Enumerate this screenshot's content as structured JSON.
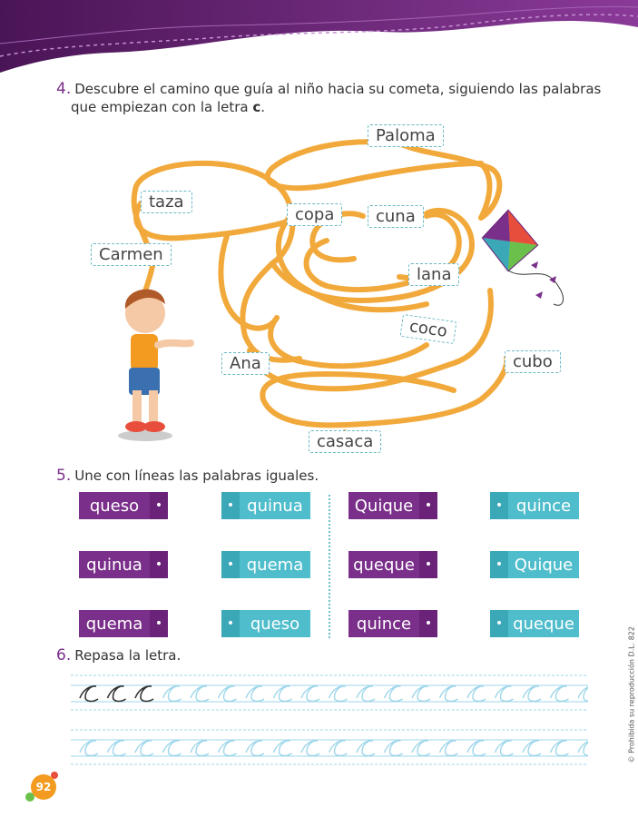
{
  "ex4": {
    "number": "4.",
    "line1": "Descubre el camino que guía al niño hacia su cometa, siguiendo las palabras",
    "line2_a": "que empiezan con la letra ",
    "line2_b": "c",
    "line2_c": ".",
    "words": [
      "Paloma",
      "taza",
      "copa",
      "cuna",
      "Carmen",
      "lana",
      "coco",
      "Ana",
      "cubo",
      "casaca"
    ]
  },
  "ex5": {
    "number": "5.",
    "instruction": "Une con líneas las palabras iguales.",
    "left": {
      "col1": [
        "queso",
        "quinua",
        "quema"
      ],
      "col2": [
        "quinua",
        "quema",
        "queso"
      ]
    },
    "right": {
      "col1": [
        "Quique",
        "queque",
        "quince"
      ],
      "col2": [
        "quince",
        "Quique",
        "queque"
      ]
    },
    "bullet": "•"
  },
  "ex6": {
    "number": "6.",
    "instruction": "Repasa la letra.",
    "letter": "c"
  },
  "footer": {
    "page_number": "92",
    "copyright": "© Prohibida su reproducción D.L. 822"
  },
  "colors": {
    "purple": "#7a2f8a",
    "teal": "#4fbdcc",
    "maze_orange": "#f2a93b",
    "guide_blue": "#9dd6ea"
  }
}
